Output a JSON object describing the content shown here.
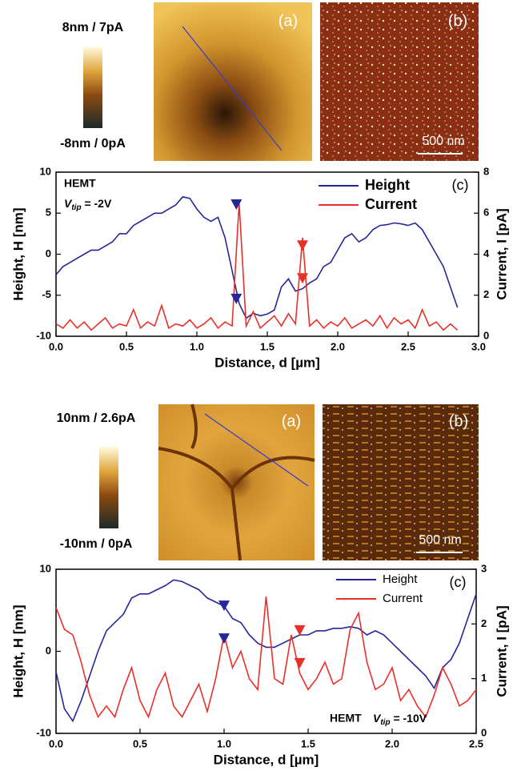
{
  "figures": [
    {
      "colorbar_max": "8nm / 7pA",
      "colorbar_min": "-8nm / 0pA",
      "image_a": "(a)",
      "image_b": "(b)",
      "scale_bar": "500 nm"
    },
    {
      "colorbar_max": "10nm / 2.6pA",
      "colorbar_min": "-10nm / 0pA",
      "image_a": "(a)",
      "image_b": "(b)",
      "scale_bar": "500 nm"
    }
  ],
  "chart_data": [
    {
      "type": "line",
      "panel": "(c)",
      "annotation": "HEMT",
      "annotation_v": "V",
      "annotation_sub": "tip",
      "annotation_rest": " = -2V",
      "xlabel": "Distance, d [µm]",
      "ylabel": "Height, H [nm]",
      "y2label": "Current, I [pA]",
      "xlim": [
        0,
        3
      ],
      "ylim": [
        -10,
        10
      ],
      "y2lim": [
        0,
        8
      ],
      "xticks": [
        {
          "value": 0,
          "label": "0.0"
        },
        0.5,
        {
          "value": 1,
          "label": "1.0"
        },
        1.5,
        {
          "value": 2,
          "label": "2.0"
        },
        2.5,
        {
          "value": 3,
          "label": "3.0"
        }
      ],
      "yticks": [
        -10,
        -5,
        0,
        5,
        10
      ],
      "y2ticks": [
        0,
        2,
        4,
        6,
        8
      ],
      "x": [
        0,
        0.05,
        0.1,
        0.15,
        0.2,
        0.25,
        0.3,
        0.35,
        0.4,
        0.45,
        0.5,
        0.55,
        0.6,
        0.65,
        0.7,
        0.75,
        0.8,
        0.85,
        0.9,
        0.95,
        1,
        1.05,
        1.1,
        1.15,
        1.2,
        1.25,
        1.3,
        1.35,
        1.4,
        1.45,
        1.5,
        1.55,
        1.6,
        1.65,
        1.7,
        1.75,
        1.8,
        1.85,
        1.9,
        1.95,
        2,
        2.05,
        2.1,
        2.15,
        2.2,
        2.25,
        2.3,
        2.35,
        2.4,
        2.45,
        2.5,
        2.55,
        2.6,
        2.65,
        2.7,
        2.75,
        2.8,
        2.85
      ],
      "series": [
        {
          "name": "Height",
          "color": "#26269a",
          "values": [
            -2.5,
            -1.5,
            -1,
            -0.5,
            0,
            0.5,
            0.5,
            1,
            1.5,
            2.5,
            2.5,
            3.5,
            4,
            4.5,
            5,
            5,
            5.5,
            6,
            7,
            6.8,
            5.5,
            4.5,
            4,
            4.5,
            2,
            -2,
            -6,
            -7.8,
            -7.2,
            -7.5,
            -7.3,
            -6.8,
            -4,
            -3,
            -4.5,
            -4.2,
            -3.5,
            -3,
            -1.5,
            -1,
            0.5,
            2,
            2.5,
            1.5,
            2,
            3,
            3.5,
            3.6,
            3.8,
            3.7,
            3.5,
            3.8,
            3,
            1.5,
            0,
            -1.5,
            -4,
            -6.5
          ]
        },
        {
          "name": "Current",
          "color": "#e8302a",
          "axis": "y2",
          "values": [
            0.6,
            0.4,
            0.8,
            0.4,
            0.7,
            0.3,
            0.6,
            0.9,
            0.4,
            0.6,
            0.5,
            1.3,
            0.4,
            0.7,
            0.5,
            1.5,
            0.4,
            0.6,
            0.5,
            0.8,
            0.4,
            0.6,
            0.9,
            0.4,
            0.7,
            0.5,
            6.5,
            0.5,
            1.2,
            0.4,
            0.7,
            1.0,
            0.5,
            1.1,
            0.6,
            4.8,
            0.5,
            0.8,
            0.4,
            0.7,
            0.5,
            0.9,
            0.4,
            0.6,
            0.8,
            0.5,
            1.0,
            0.4,
            0.9,
            0.6,
            0.8,
            0.4,
            1.3,
            0.5,
            0.7,
            0.3,
            0.6,
            0.3
          ]
        }
      ],
      "markers": [
        {
          "x": 1.28,
          "y": 6,
          "color": "#26269a"
        },
        {
          "x": 1.28,
          "y": -5.5,
          "color": "#26269a"
        },
        {
          "x": 1.75,
          "y": 1,
          "color": "#e8302a"
        },
        {
          "x": 1.75,
          "y": -3,
          "color": "#e8302a"
        }
      ]
    },
    {
      "type": "line",
      "panel": "(c)",
      "annotation": "HEMT",
      "annotation_v": "V",
      "annotation_sub": "tip",
      "annotation_rest": " = -10V",
      "xlabel": "Distance, d [µm]",
      "ylabel": "Height, H [nm]",
      "y2label": "Current, I [pA]",
      "xlim": [
        0,
        2.5
      ],
      "ylim": [
        -10,
        10
      ],
      "y2lim": [
        0,
        3
      ],
      "xticks": [
        {
          "value": 0,
          "label": "0.0"
        },
        0.5,
        {
          "value": 1,
          "label": "1.0"
        },
        1.5,
        {
          "value": 2,
          "label": "2.0"
        },
        2.5
      ],
      "yticks": [
        -10,
        0,
        10
      ],
      "y2ticks": [
        0,
        1,
        2,
        3
      ],
      "x": [
        0,
        0.05,
        0.1,
        0.15,
        0.2,
        0.25,
        0.3,
        0.35,
        0.4,
        0.45,
        0.5,
        0.55,
        0.6,
        0.65,
        0.7,
        0.75,
        0.8,
        0.85,
        0.9,
        0.95,
        1,
        1.05,
        1.1,
        1.15,
        1.2,
        1.25,
        1.3,
        1.35,
        1.4,
        1.45,
        1.5,
        1.55,
        1.6,
        1.65,
        1.7,
        1.75,
        1.8,
        1.85,
        1.9,
        1.95,
        2,
        2.05,
        2.1,
        2.15,
        2.2,
        2.25,
        2.3,
        2.35,
        2.4,
        2.45,
        2.5
      ],
      "series": [
        {
          "name": "Height",
          "color": "#26269a",
          "values": [
            -2.5,
            -7,
            -8.5,
            -6,
            -3,
            0,
            2.5,
            3.5,
            4.5,
            6.5,
            7,
            7,
            7.5,
            8,
            8.7,
            8.5,
            8,
            7.5,
            6.5,
            6,
            5.5,
            4,
            3.5,
            2,
            1,
            0.5,
            0.5,
            1,
            1.5,
            2,
            2,
            2.5,
            2.5,
            2.8,
            2.8,
            3,
            2.8,
            2,
            2.5,
            2,
            1,
            0,
            -1,
            -2,
            -3,
            -4.5,
            -2,
            -1,
            1,
            4,
            7
          ]
        },
        {
          "name": "Current",
          "color": "#e8302a",
          "axis": "y2",
          "values": [
            2.3,
            1.9,
            1.8,
            1.3,
            0.7,
            0.3,
            0.5,
            0.3,
            0.8,
            1.2,
            0.6,
            0.3,
            0.8,
            1.1,
            0.5,
            0.3,
            0.6,
            0.9,
            0.4,
            1.0,
            1.8,
            1.2,
            1.5,
            1.0,
            0.8,
            2.5,
            1.0,
            0.9,
            1.8,
            1.1,
            0.8,
            1.0,
            1.3,
            0.9,
            1.0,
            1.9,
            2.2,
            1.3,
            0.8,
            0.9,
            1.2,
            0.6,
            0.8,
            0.5,
            0.3,
            0.7,
            1.2,
            0.9,
            0.5,
            0.6,
            0.8
          ]
        }
      ],
      "markers": [
        {
          "x": 1.0,
          "y": 5.5,
          "color": "#26269a"
        },
        {
          "x": 1.0,
          "y": 1.5,
          "color": "#26269a"
        },
        {
          "x": 1.45,
          "y": 2.5,
          "color": "#e8302a"
        },
        {
          "x": 1.45,
          "y": -1.5,
          "color": "#e8302a"
        }
      ]
    }
  ]
}
